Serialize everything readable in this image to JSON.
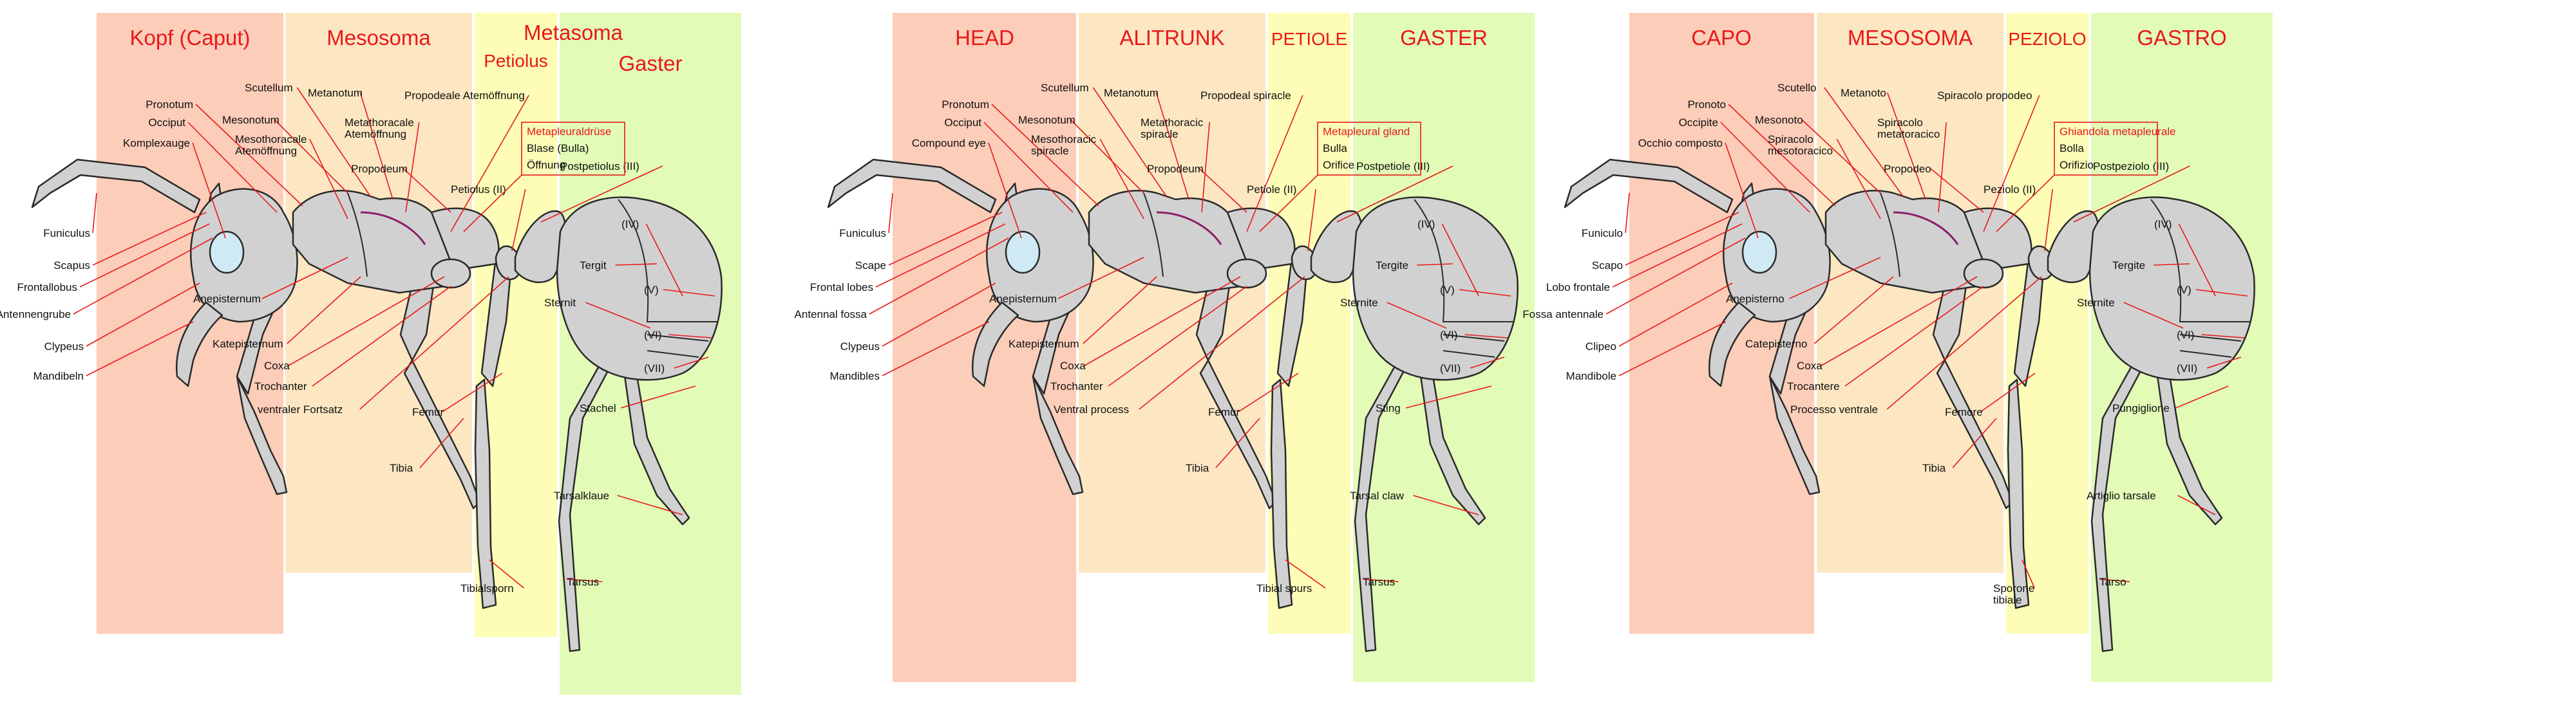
{
  "colors": {
    "head": "#fccdb8",
    "mesosoma": "#fde7c2",
    "petiole": "#fdfdb8",
    "gaster": "#e2fbb7",
    "heading": "#e8191b",
    "leader": "#e8191b",
    "body_fill": "#d1d1d1",
    "body_outline": "#2a2a2a",
    "eye_fill": "#cfeaf4"
  },
  "icons": [
    "ant-body-illustration",
    "compound-eye-icon"
  ],
  "panels": [
    {
      "headings": {
        "head": "Kopf (Caput)",
        "mesosoma": "Mesosoma",
        "metasoma": "Metasoma",
        "petiole": "Petiolus",
        "gaster": "Gaster"
      },
      "head_labels": {
        "funiculus": "Funiculus",
        "scape": "Scapus",
        "frontal_lobe": "Frontallobus",
        "antennal_fossa": "Antennengrube",
        "clypeus": "Clypeus",
        "mandibles": "Mandibeln",
        "compound_eye": "Komplexauge",
        "occiput": "Occiput",
        "pronotum": "Pronotum"
      },
      "mesosoma_labels": {
        "mesonotum": "Mesonotum",
        "mesothoracic_spiracle": [
          "Mesothoracale",
          "Atemöffnung"
        ],
        "scutellum": "Scutellum",
        "metanotum": "Metanotum",
        "metathoracic_spiracle": [
          "Metathoracale",
          "Atemöffnung"
        ],
        "propodeum": "Propodeum",
        "anepisternum": "Anepisternum",
        "katepisternum": "Katepisternum",
        "coxa": "Coxa",
        "trochanter": "Trochanter",
        "ventral_process": "ventraler Fortsatz",
        "propodeal_spiracle": "Propodeale Atemöffnung"
      },
      "gland": {
        "title": "Metapleuraldrüse",
        "bulla": "Blase (Bulla)",
        "orifice": "Öffnung"
      },
      "metasoma_labels": {
        "postpetiole": "Postpetiolus (III)",
        "petiole": "Petiolus (II)",
        "tergite": "Tergit",
        "sternite": "Sternit",
        "seg4": "(IV)",
        "seg5": "(V)",
        "seg6": "(VI)",
        "seg7": "(VII)",
        "sting": "Stachel",
        "tarsal_claw": "Tarsalklaue",
        "tarsus": "Tarsus",
        "femur": "Femur",
        "tibia": "Tibia",
        "tibial_spur": "Tibialsporn"
      }
    },
    {
      "headings": {
        "head": "HEAD",
        "mesosoma": "ALITRUNK",
        "petiole": "PETIOLE",
        "gaster": "GASTER"
      },
      "head_labels": {
        "funiculus": "Funiculus",
        "scape": "Scape",
        "frontal_lobe": "Frontal lobes",
        "antennal_fossa": "Antennal fossa",
        "clypeus": "Clypeus",
        "mandibles": "Mandibles",
        "compound_eye": "Compound eye",
        "occiput": "Occiput",
        "pronotum": "Pronotum"
      },
      "mesosoma_labels": {
        "mesonotum": "Mesonotum",
        "mesothoracic_spiracle": [
          "Mesothoracic",
          "spiracle"
        ],
        "scutellum": "Scutellum",
        "metanotum": "Metanotum",
        "metathoracic_spiracle": [
          "Metathoracic",
          "spiracle"
        ],
        "propodeum": "Propodeum",
        "anepisternum": "Anepisternum",
        "katepisternum": "Katepisternum",
        "coxa": "Coxa",
        "trochanter": "Trochanter",
        "ventral_process": "Ventral process",
        "propodeal_spiracle": "Propodeal spiracle"
      },
      "gland": {
        "title": "Metapleural gland",
        "bulla": "Bulla",
        "orifice": "Orifice"
      },
      "metasoma_labels": {
        "postpetiole": "Postpetiole (III)",
        "petiole": "Petiole (II)",
        "tergite": "Tergite",
        "sternite": "Sternite",
        "seg4": "(IV)",
        "seg5": "(V)",
        "seg6": "(VI)",
        "seg7": "(VII)",
        "sting": "Sting",
        "tarsal_claw": "Tarsal claw",
        "tarsus": "Tarsus",
        "femur": "Femur",
        "tibia": "Tibia",
        "tibial_spur": "Tibial spurs"
      }
    },
    {
      "headings": {
        "head": "CAPO",
        "mesosoma": "MESOSOMA",
        "petiole": "PEZIOLO",
        "gaster": "GASTRO"
      },
      "head_labels": {
        "funiculus": "Funiculo",
        "scape": "Scapo",
        "frontal_lobe": "Lobo frontale",
        "antennal_fossa": "Fossa antennale",
        "clypeus": "Clipeo",
        "mandibles": "Mandibole",
        "compound_eye": "Occhio composto",
        "occiput": "Occipite",
        "pronotum": "Pronoto"
      },
      "mesosoma_labels": {
        "mesonotum": "Mesonoto",
        "mesothoracic_spiracle": [
          "Spiracolo",
          "mesotoracico"
        ],
        "scutellum": "Scutello",
        "metanotum": "Metanoto",
        "metathoracic_spiracle": [
          "Spiracolo",
          "metatoracico"
        ],
        "propodeum": "Propodeo",
        "anepisternum": "Anepisterno",
        "katepisternum": "Catepisterno",
        "coxa": "Coxa",
        "trochanter": "Trocantere",
        "ventral_process": "Processo ventrale",
        "propodeal_spiracle": "Spiracolo propodeo"
      },
      "gland": {
        "title": "Ghiandola metapleurale",
        "bulla": "Bolla",
        "orifice": "Orifizio"
      },
      "metasoma_labels": {
        "postpetiole": "Postpeziolo (III)",
        "petiole": "Peziolo (II)",
        "tergite": "Tergite",
        "sternite": "Sternite",
        "seg4": "(IV)",
        "seg5": "(V)",
        "seg6": "(VI)",
        "seg7": "(VII)",
        "sting": "Pungiglione",
        "tarsal_claw": "Artiglio tarsale",
        "tarsus": "Tarso",
        "femur": "Femore",
        "tibia": "Tibia",
        "tibial_spur": [
          "Sporone",
          "tibiale"
        ]
      }
    }
  ]
}
